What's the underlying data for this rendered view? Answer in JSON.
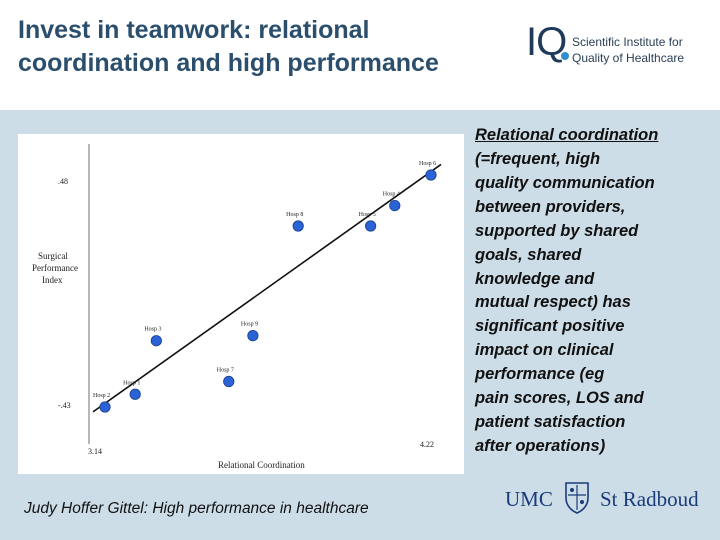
{
  "slide": {
    "title_lines": [
      "Invest in teamwork: relational",
      "coordination and high performance"
    ],
    "logo": {
      "mark": "IQ",
      "org_lines": [
        "Scientific Institute for",
        "Quality of Healthcare"
      ]
    },
    "side_text": {
      "lines": [
        "Relational coordination",
        " (=frequent, high",
        "quality  communication",
        "between providers,",
        "supported by shared",
        "goals, shared",
        "knowledge and",
        "mutual respect) has",
        "significant positive",
        "impact on clinical",
        "performance (eg",
        "pain scores, LOS and",
        "patient satisfaction",
        "after operations)"
      ]
    },
    "credit": "Judy Hoffer Gittel: High performance in healthcare",
    "umc_logo": {
      "left": "UMC",
      "right": "St Radboud"
    },
    "colors": {
      "title": "#2a4e6c",
      "band": "#cddde7",
      "point": "#2a63d6",
      "trend": "#111111",
      "umc": "#1a3c7a"
    }
  },
  "chart_data": {
    "type": "scatter",
    "title": "",
    "xlabel": "Relational Coordination",
    "ylabel_lines": [
      "Surgical",
      "Performance",
      "Index"
    ],
    "x_tick_labels": {
      "min": "3.14",
      "max": "4.22"
    },
    "y_tick_labels": {
      "max": ".48",
      "min": "-.43"
    },
    "xlim": [
      3.14,
      4.22
    ],
    "ylim": [
      -0.43,
      0.48
    ],
    "grid": false,
    "points": [
      {
        "label": "Hosp 2",
        "x": 3.14,
        "y": -0.43
      },
      {
        "label": "Hosp 1",
        "x": 3.24,
        "y": -0.38
      },
      {
        "label": "Hosp 3",
        "x": 3.31,
        "y": -0.17
      },
      {
        "label": "Hosp 7",
        "x": 3.55,
        "y": -0.33
      },
      {
        "label": "Hosp 9",
        "x": 3.63,
        "y": -0.15
      },
      {
        "label": "Hosp 8",
        "x": 3.78,
        "y": 0.28
      },
      {
        "label": "Hosp 5",
        "x": 4.02,
        "y": 0.28
      },
      {
        "label": "Hosp 4",
        "x": 4.1,
        "y": 0.36
      },
      {
        "label": "Hosp 6",
        "x": 4.22,
        "y": 0.48
      }
    ],
    "trendline": {
      "from": {
        "x": 3.14,
        "y": -0.41
      },
      "to": {
        "x": 4.22,
        "y": 0.49
      }
    }
  }
}
